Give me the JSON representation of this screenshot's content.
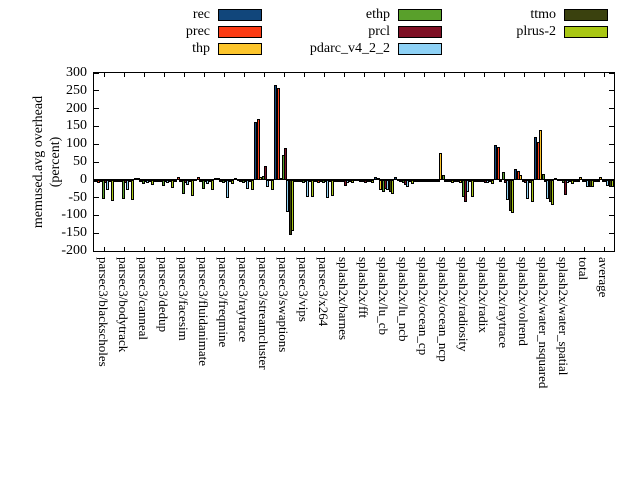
{
  "chart_data": {
    "type": "bar",
    "title": "",
    "ylabel_line1": "memused.avg overhead",
    "ylabel_line2": "(percent)",
    "ylim": [
      -200,
      300
    ],
    "yticks": [
      300,
      250,
      200,
      150,
      100,
      50,
      0,
      -50,
      -100,
      -150,
      -200
    ],
    "grid": false,
    "legend_position": "top",
    "legend_columns": [
      [
        "rec",
        "prec",
        "thp"
      ],
      [
        "ethp",
        "prcl",
        "pdarc_v4_2_2"
      ],
      [
        "ttmo",
        "plrus-2"
      ]
    ],
    "categories": [
      "parsec3/blackscholes",
      "parsec3/bodytrack",
      "parsec3/canneal",
      "parsec3/dedup",
      "parsec3/facesim",
      "parsec3/fluidanimate",
      "parsec3/freqmine",
      "parsec3/raytrace",
      "parsec3/streamcluster",
      "parsec3/swaptions",
      "parsec3/vips",
      "parsec3/x264",
      "splash2x/barnes",
      "splash2x/fft",
      "splash2x/lu_cb",
      "splash2x/lu_ncb",
      "splash2x/ocean_cp",
      "splash2x/ocean_ncp",
      "splash2x/radiosity",
      "splash2x/radix",
      "splash2x/raytrace",
      "splash2x/volrend",
      "splash2x/water_nsquared",
      "splash2x/water_spatial",
      "total",
      "average"
    ],
    "series": [
      {
        "name": "rec",
        "color": "#11467b",
        "values": [
          -2,
          -3,
          5,
          -2,
          -2,
          2,
          5,
          4,
          163,
          265,
          -3,
          -5,
          -2,
          3,
          8,
          7,
          -3,
          -3,
          -3,
          -2,
          97,
          31,
          121,
          5,
          -2,
          -2
        ]
      },
      {
        "name": "prec",
        "color": "#fb3b14",
        "values": [
          -8,
          -5,
          5,
          -3,
          8,
          8,
          4,
          3,
          172,
          257,
          -5,
          -8,
          -3,
          2,
          4,
          3,
          -4,
          -4,
          -5,
          -3,
          92,
          25,
          107,
          3,
          -3,
          -3
        ]
      },
      {
        "name": "thp",
        "color": "#fcc52c",
        "values": [
          -3,
          -3,
          -2,
          -2,
          -4,
          -3,
          -3,
          -2,
          8,
          5,
          -3,
          -4,
          -2,
          -2,
          -30,
          -3,
          -2,
          74,
          -8,
          -2,
          -5,
          14,
          141,
          2,
          9,
          9
        ]
      },
      {
        "name": "ethp",
        "color": "#59a02b",
        "values": [
          -55,
          -55,
          -12,
          -18,
          -40,
          -25,
          -10,
          -8,
          12,
          69,
          -8,
          -10,
          -6,
          -5,
          -35,
          -8,
          -2,
          14,
          -49,
          -5,
          23,
          -5,
          17,
          -8,
          -5,
          -5
        ]
      },
      {
        "name": "prcl",
        "color": "#7e0f24",
        "values": [
          -10,
          -8,
          -5,
          -5,
          -8,
          -6,
          -5,
          -4,
          40,
          88,
          -5,
          -6,
          -18,
          -8,
          -25,
          -15,
          -3,
          -3,
          -63,
          -8,
          -8,
          -8,
          -5,
          -44,
          -4,
          -5
        ]
      },
      {
        "name": "pdarc_v4_2_2",
        "color": "#8ed1f5",
        "values": [
          -28,
          -30,
          -8,
          -10,
          -15,
          -12,
          -50,
          -25,
          -20,
          -91,
          -49,
          -50,
          -10,
          -6,
          -30,
          -20,
          -4,
          -4,
          -35,
          -10,
          -58,
          -54,
          -54,
          -10,
          -20,
          -18
        ]
      },
      {
        "name": "ttmo",
        "color": "#3a410e",
        "values": [
          -5,
          -4,
          -3,
          -3,
          -5,
          -4,
          -4,
          -3,
          3,
          -155,
          -5,
          -5,
          -2,
          -2,
          -35,
          -4,
          -2,
          -2,
          -5,
          -3,
          -88,
          -8,
          -62,
          -4,
          -21,
          -19
        ]
      },
      {
        "name": "plrus-2",
        "color": "#a9c714",
        "values": [
          -60,
          -58,
          -15,
          -22,
          -45,
          -30,
          -12,
          -30,
          -30,
          -143,
          -47,
          -45,
          -8,
          -8,
          -40,
          -12,
          -5,
          -8,
          -48,
          -12,
          -94,
          -63,
          -70,
          -12,
          -21,
          -20
        ]
      }
    ]
  }
}
